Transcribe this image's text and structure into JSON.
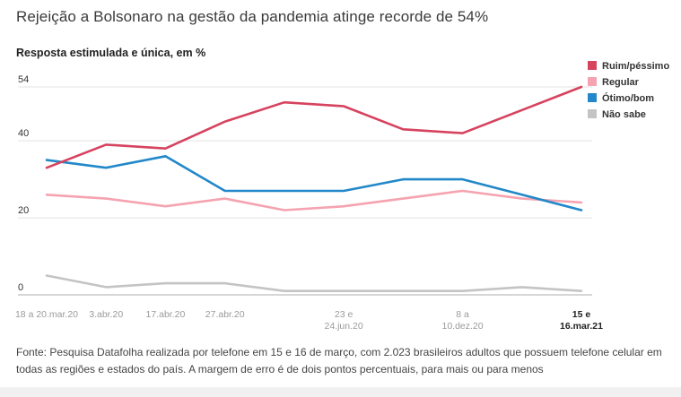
{
  "header": {
    "title": "Rejeição a Bolsonaro na gestão da pandemia atinge recorde de 54%",
    "subtitle": "Resposta estimulada e única, em %"
  },
  "footer": {
    "source": "Fonte: Pesquisa Datafolha realizada por telefone em 15 e 16 de março, com 2.023 brasileiros adultos que possuem telefone celular em todas as regiões e estados do país. A margem de erro é de dois pontos percentuais, para mais ou para menos"
  },
  "chart_data": {
    "type": "line",
    "x": [
      [
        "18 a 20.mar.20"
      ],
      [
        "3.abr.20"
      ],
      [
        "17.abr.20"
      ],
      [
        "27.abr.20"
      ],
      [
        ""
      ],
      [
        "23 e",
        "24.jun.20"
      ],
      [
        ""
      ],
      [
        "8 a",
        "10.dez.20"
      ],
      [
        ""
      ],
      [
        "15 e",
        "16.mar.21"
      ]
    ],
    "yticks": [
      0,
      20,
      40,
      54
    ],
    "ylim": [
      0,
      54
    ],
    "grid": true,
    "legend": "top-right",
    "series": [
      {
        "name": "Ruim/péssimo",
        "color": "#d6435f",
        "values": [
          33,
          39,
          38,
          45,
          50,
          49,
          43,
          42,
          48,
          54
        ]
      },
      {
        "name": "Regular",
        "color": "#f5a3b0",
        "values": [
          26,
          25,
          23,
          25,
          22,
          23,
          25,
          27,
          25,
          24
        ]
      },
      {
        "name": "Ótimo/bom",
        "color": "#2288c9",
        "values": [
          35,
          33,
          36,
          27,
          27,
          27,
          30,
          30,
          26,
          22
        ]
      },
      {
        "name": "Não sabe",
        "color": "#c4c4c4",
        "values": [
          5,
          2,
          3,
          3,
          1,
          1,
          1,
          1,
          2,
          1
        ]
      }
    ]
  }
}
